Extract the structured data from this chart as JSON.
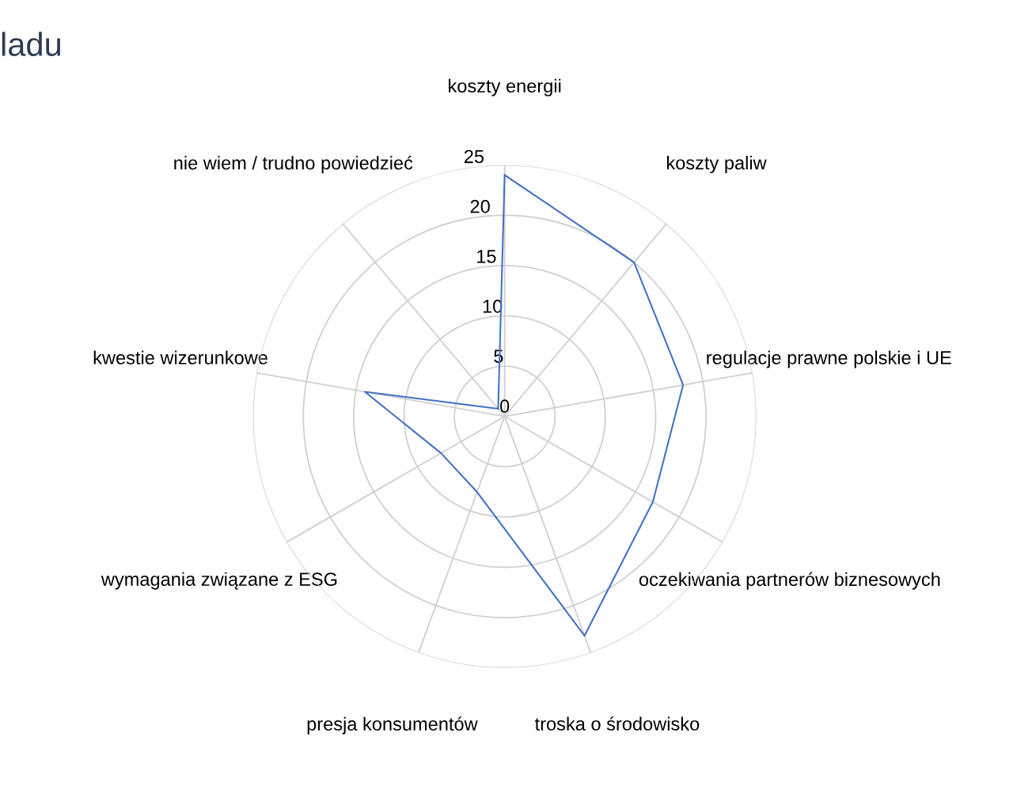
{
  "chart_data": {
    "type": "radar",
    "title": "ladu",
    "categories": [
      "koszty energii",
      "koszty paliw",
      "regulacje prawne polskie i UE",
      "oczekiwania partnerów biznesowych",
      "troska o środowisko",
      "presja konsumentów",
      "wymagania związane z ESG",
      "kwestie wizerunkowe",
      "nie wiem / trudno powiedzieć"
    ],
    "series": [
      {
        "color": "#4472c4",
        "values": [
          24,
          20,
          18,
          17,
          23.2,
          8,
          7.3,
          14.1,
          1
        ]
      }
    ],
    "ylim": [
      0,
      25
    ],
    "yticks": [
      0,
      5,
      10,
      15,
      20,
      25
    ],
    "grid": true,
    "legend": false,
    "marker": "none",
    "line_style": "solid"
  }
}
